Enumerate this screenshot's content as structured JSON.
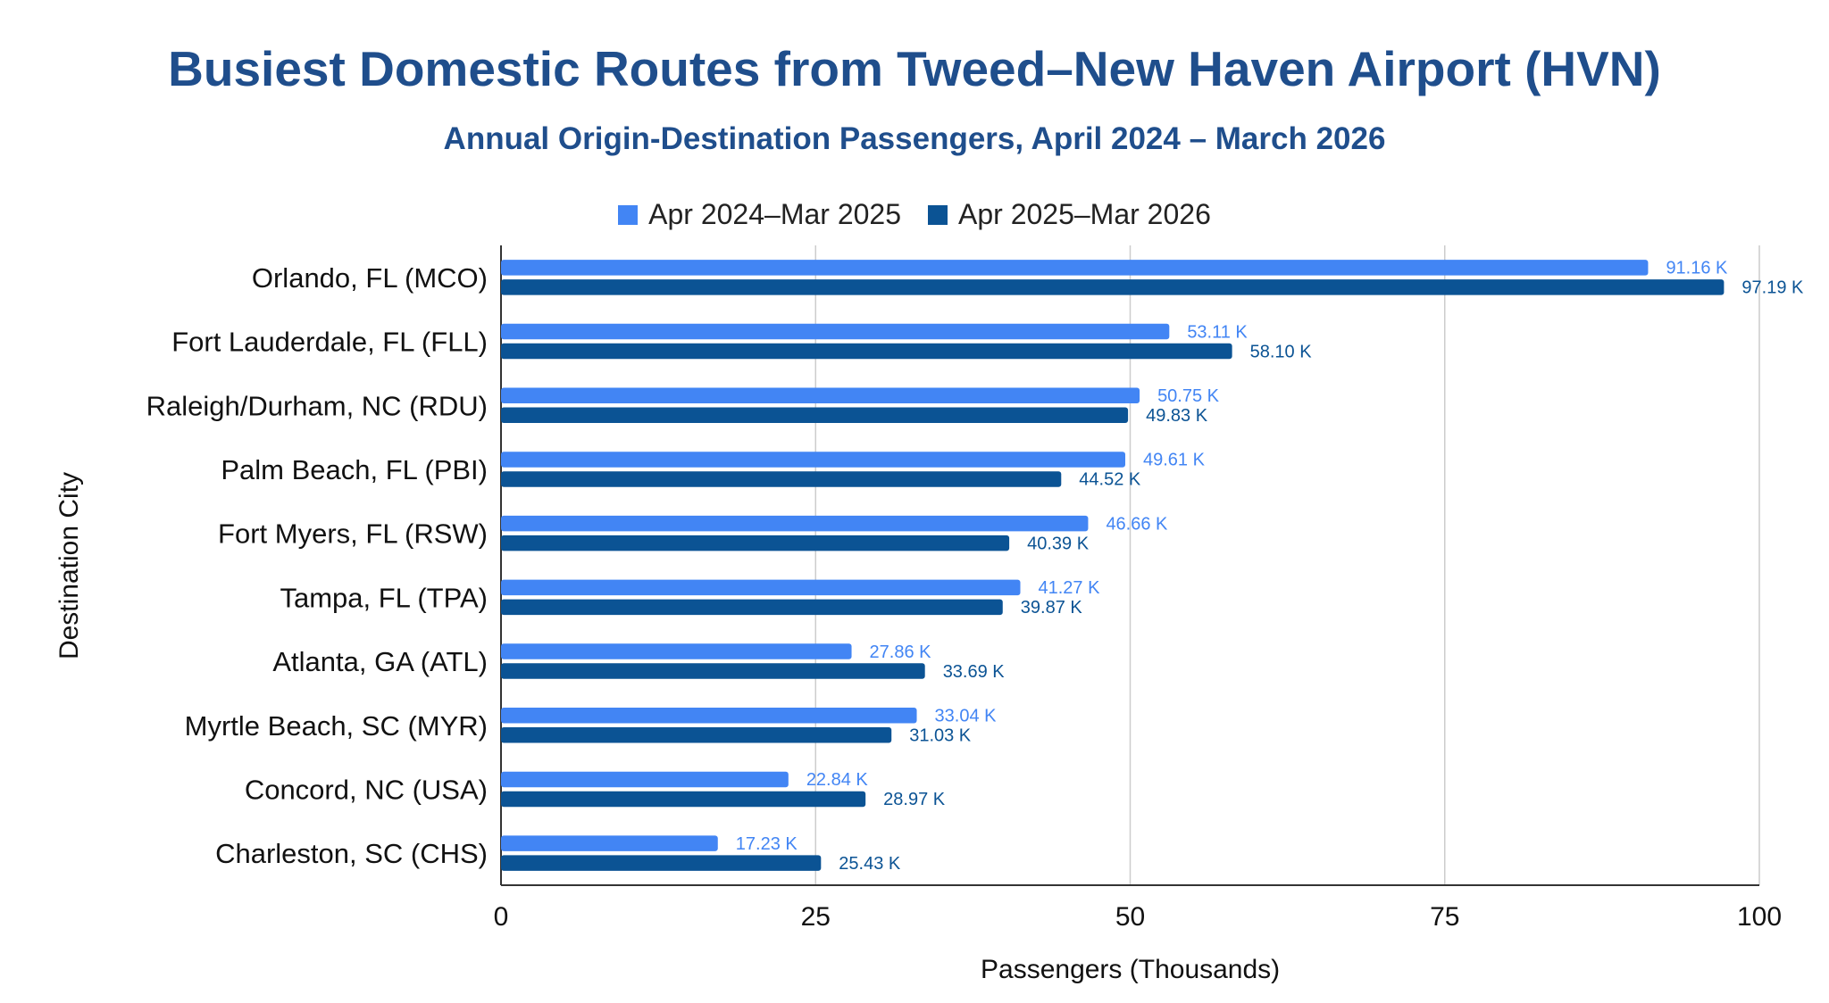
{
  "chart_data": {
    "type": "bar",
    "orientation": "horizontal",
    "title": "Busiest Domestic Routes from Tweed–New Haven Airport (HVN)",
    "subtitle": "Annual Origin-Destination Passengers, April 2024 – March 2026",
    "xlabel": "Passengers (Thousands)",
    "ylabel": "Destination City",
    "xlim": [
      0,
      100
    ],
    "xticks": [
      0,
      25,
      50,
      75,
      100
    ],
    "grid": true,
    "legend_position": "top-center",
    "categories": [
      "Orlando, FL (MCO)",
      "Fort Lauderdale, FL (FLL)",
      "Raleigh/Durham, NC (RDU)",
      "Palm Beach, FL (PBI)",
      "Fort Myers, FL (RSW)",
      "Tampa, FL (TPA)",
      "Atlanta, GA (ATL)",
      "Myrtle Beach, SC (MYR)",
      "Concord, NC (USA)",
      "Charleston, SC (CHS)"
    ],
    "series": [
      {
        "name": "Apr 2024–Mar 2025",
        "color": "#4285f4",
        "values": [
          91.16,
          53.11,
          50.75,
          49.61,
          46.66,
          41.27,
          27.86,
          33.04,
          22.84,
          17.23
        ],
        "labels": [
          "91.16 K",
          "53.11 K",
          "50.75 K",
          "49.61 K",
          "46.66 K",
          "41.27 K",
          "27.86 K",
          "33.04 K",
          "22.84 K",
          "17.23 K"
        ]
      },
      {
        "name": "Apr 2025–Mar 2026",
        "color": "#0b5394",
        "values": [
          97.19,
          58.1,
          49.83,
          44.52,
          40.39,
          39.87,
          33.69,
          31.03,
          28.97,
          25.43
        ],
        "labels": [
          "97.19 K",
          "58.10 K",
          "49.83 K",
          "44.52 K",
          "40.39 K",
          "39.87 K",
          "33.69 K",
          "31.03 K",
          "28.97 K",
          "25.43 K"
        ]
      }
    ]
  }
}
